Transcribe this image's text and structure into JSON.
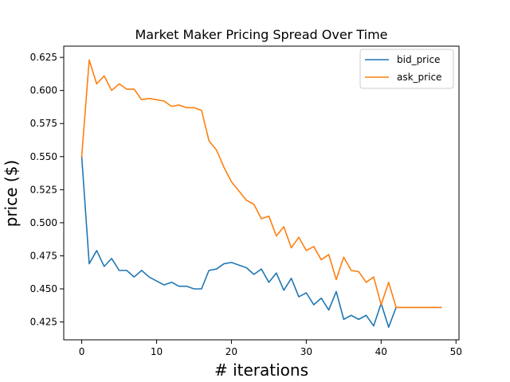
{
  "chart_data": {
    "type": "line",
    "title": "Market Maker Pricing Spread Over Time",
    "xlabel": "# iterations",
    "ylabel": "price ($)",
    "xlim": [
      -2.4,
      50.4
    ],
    "ylim": [
      0.4115,
      0.6335
    ],
    "xticks": [
      0,
      10,
      20,
      30,
      40,
      50
    ],
    "xtick_labels": [
      "0",
      "10",
      "20",
      "30",
      "40",
      "50"
    ],
    "yticks": [
      0.425,
      0.45,
      0.475,
      0.5,
      0.525,
      0.55,
      0.575,
      0.6,
      0.625
    ],
    "ytick_labels": [
      "0.425",
      "0.450",
      "0.475",
      "0.500",
      "0.525",
      "0.550",
      "0.575",
      "0.600",
      "0.625"
    ],
    "grid": false,
    "legend_position": "top-right",
    "x": [
      0,
      1,
      2,
      3,
      4,
      5,
      6,
      7,
      8,
      9,
      10,
      11,
      12,
      13,
      14,
      15,
      16,
      17,
      18,
      19,
      20,
      21,
      22,
      23,
      24,
      25,
      26,
      27,
      28,
      29,
      30,
      31,
      32,
      33,
      34,
      35,
      36,
      37,
      38,
      39,
      40,
      41,
      42,
      43,
      44,
      45,
      46,
      47,
      48
    ],
    "series": [
      {
        "name": "bid_price",
        "color": "#1f77b4",
        "values": [
          0.55,
          0.469,
          0.479,
          0.467,
          0.473,
          0.464,
          0.464,
          0.459,
          0.464,
          0.459,
          0.456,
          0.453,
          0.455,
          0.452,
          0.452,
          0.45,
          0.45,
          0.464,
          0.465,
          0.469,
          0.47,
          0.468,
          0.466,
          0.461,
          0.465,
          0.455,
          0.462,
          0.449,
          0.458,
          0.444,
          0.447,
          0.438,
          0.443,
          0.434,
          0.448,
          0.427,
          0.43,
          0.427,
          0.43,
          0.422,
          0.439,
          0.421,
          0.436,
          0.436,
          0.436,
          0.436,
          0.436,
          0.436,
          0.436
        ]
      },
      {
        "name": "ask_price",
        "color": "#ff7f0e",
        "values": [
          0.55,
          0.623,
          0.605,
          0.611,
          0.6,
          0.605,
          0.601,
          0.601,
          0.593,
          0.594,
          0.593,
          0.592,
          0.588,
          0.589,
          0.587,
          0.587,
          0.585,
          0.562,
          0.555,
          0.542,
          0.531,
          0.524,
          0.517,
          0.514,
          0.503,
          0.505,
          0.49,
          0.497,
          0.481,
          0.489,
          0.479,
          0.482,
          0.472,
          0.476,
          0.457,
          0.474,
          0.464,
          0.463,
          0.455,
          0.459,
          0.438,
          0.455,
          0.436,
          0.436,
          0.436,
          0.436,
          0.436,
          0.436,
          0.436
        ]
      }
    ]
  }
}
